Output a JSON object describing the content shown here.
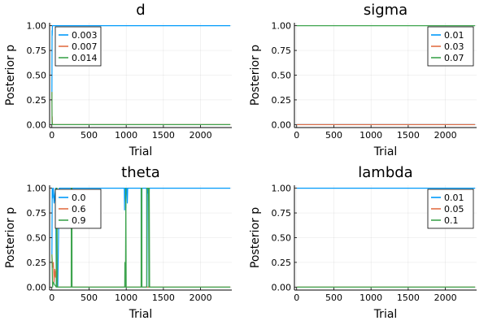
{
  "colors": {
    "s1": "#009AFA",
    "s2": "#E26F46",
    "s3": "#3EA44E"
  },
  "chart_data": [
    {
      "type": "line",
      "title": "d",
      "xlabel": "Trial",
      "ylabel": "Posterior p",
      "xlim": [
        -30,
        2420
      ],
      "ylim": [
        -0.03,
        1.03
      ],
      "xticks": [
        0,
        500,
        1000,
        1500,
        2000
      ],
      "yticks": [
        0.0,
        0.25,
        0.5,
        0.75,
        1.0
      ],
      "xtick_labels": [
        "0",
        "500",
        "1000",
        "1500",
        "2000"
      ],
      "ytick_labels": [
        "0.00",
        "0.25",
        "0.50",
        "0.75",
        "1.00"
      ],
      "grid": true,
      "legend_position": "top-left",
      "series": [
        {
          "name": "0.003",
          "color": "#009AFA",
          "x": [
            1,
            3,
            5,
            8,
            12,
            2400
          ],
          "y": [
            0.33,
            0.95,
            0.9,
            1.0,
            1.0,
            1.0
          ]
        },
        {
          "name": "0.007",
          "color": "#E26F46",
          "x": [
            1,
            3,
            5,
            8,
            12,
            2400
          ],
          "y": [
            0.33,
            0.05,
            0.08,
            0.0,
            0.0,
            0.0
          ]
        },
        {
          "name": "0.014",
          "color": "#3EA44E",
          "x": [
            1,
            3,
            5,
            8,
            12,
            2400
          ],
          "y": [
            0.33,
            0.0,
            0.02,
            0.0,
            0.0,
            0.0
          ]
        }
      ]
    },
    {
      "type": "line",
      "title": "sigma",
      "xlabel": "Trial",
      "ylabel": "Posterior p",
      "xlim": [
        -30,
        2420
      ],
      "ylim": [
        -0.03,
        1.03
      ],
      "xticks": [
        0,
        500,
        1000,
        1500,
        2000
      ],
      "yticks": [
        0.0,
        0.25,
        0.5,
        0.75,
        1.0
      ],
      "xtick_labels": [
        "0",
        "500",
        "1000",
        "1500",
        "2000"
      ],
      "ytick_labels": [
        "0.00",
        "0.25",
        "0.50",
        "0.75",
        "1.00"
      ],
      "grid": true,
      "legend_position": "top-right",
      "series": [
        {
          "name": "0.01",
          "color": "#009AFA",
          "x": [
            1,
            2400
          ],
          "y": [
            0.0,
            0.0
          ]
        },
        {
          "name": "0.03",
          "color": "#E26F46",
          "x": [
            1,
            2400
          ],
          "y": [
            0.0,
            0.0
          ]
        },
        {
          "name": "0.07",
          "color": "#3EA44E",
          "x": [
            1,
            2400
          ],
          "y": [
            1.0,
            1.0
          ]
        }
      ]
    },
    {
      "type": "line",
      "title": "theta",
      "xlabel": "Trial",
      "ylabel": "Posterior p",
      "xlim": [
        -30,
        2420
      ],
      "ylim": [
        -0.03,
        1.03
      ],
      "xticks": [
        0,
        500,
        1000,
        1500,
        2000
      ],
      "yticks": [
        0.0,
        0.25,
        0.5,
        0.75,
        1.0
      ],
      "xtick_labels": [
        "0",
        "500",
        "1000",
        "1500",
        "2000"
      ],
      "ytick_labels": [
        "0.00",
        "0.25",
        "0.50",
        "0.75",
        "1.00"
      ],
      "grid": true,
      "legend_position": "top-left",
      "series": [
        {
          "name": "0.0",
          "color": "#009AFA",
          "x": [
            1,
            5,
            10,
            20,
            30,
            50,
            60,
            80,
            100,
            260,
            262,
            270,
            975,
            978,
            980,
            985,
            990,
            995,
            1000,
            1005,
            1010,
            1015,
            1020,
            1200,
            1202,
            1210,
            1212,
            1275,
            1278,
            1285,
            1290,
            1300,
            1305,
            1310,
            1315,
            2400
          ],
          "y": [
            0.33,
            1.0,
            0.9,
            1.0,
            0.85,
            1.0,
            0.0,
            0.0,
            1.0,
            1.0,
            0.0,
            1.0,
            1.0,
            0.78,
            1.0,
            0.9,
            1.0,
            0.8,
            1.0,
            0.95,
            1.0,
            0.85,
            1.0,
            1.0,
            0.0,
            0.0,
            1.0,
            1.0,
            0.0,
            1.0,
            0.95,
            1.0,
            0.8,
            1.0,
            1.0,
            1.0
          ]
        },
        {
          "name": "0.6",
          "color": "#E26F46",
          "x": [
            1,
            10,
            20,
            30,
            40,
            50,
            60,
            70,
            80,
            90,
            100,
            2400
          ],
          "y": [
            0.33,
            0.2,
            0.25,
            0.05,
            0.18,
            0.1,
            0.19,
            0.0,
            0.0,
            0.0,
            0.0,
            0.0
          ]
        },
        {
          "name": "0.9",
          "color": "#3EA44E",
          "x": [
            1,
            10,
            20,
            40,
            60,
            62,
            70,
            72,
            100,
            260,
            262,
            270,
            272,
            980,
            982,
            990,
            995,
            1000,
            1005,
            1200,
            1202,
            1210,
            1212,
            1275,
            1278,
            1300,
            1305,
            1310,
            1315,
            2400
          ],
          "y": [
            0.33,
            0.0,
            0.05,
            0.02,
            0.0,
            1.0,
            1.0,
            0.0,
            0.0,
            0.0,
            1.0,
            1.0,
            0.0,
            0.0,
            0.25,
            0.0,
            1.0,
            0.0,
            0.0,
            0.0,
            1.0,
            1.0,
            0.0,
            0.0,
            1.0,
            1.0,
            0.0,
            1.0,
            0.0,
            0.0
          ]
        }
      ]
    },
    {
      "type": "line",
      "title": "lambda",
      "xlabel": "Trial",
      "ylabel": "Posterior p",
      "xlim": [
        -30,
        2420
      ],
      "ylim": [
        -0.03,
        1.03
      ],
      "xticks": [
        0,
        500,
        1000,
        1500,
        2000
      ],
      "yticks": [
        0.0,
        0.25,
        0.5,
        0.75,
        1.0
      ],
      "xtick_labels": [
        "0",
        "500",
        "1000",
        "1500",
        "2000"
      ],
      "ytick_labels": [
        "0.00",
        "0.25",
        "0.50",
        "0.75",
        "1.00"
      ],
      "grid": true,
      "legend_position": "top-right",
      "series": [
        {
          "name": "0.01",
          "color": "#009AFA",
          "x": [
            1,
            2400
          ],
          "y": [
            1.0,
            1.0
          ]
        },
        {
          "name": "0.05",
          "color": "#E26F46",
          "x": [
            1,
            2400
          ],
          "y": [
            0.0,
            0.0
          ]
        },
        {
          "name": "0.1",
          "color": "#3EA44E",
          "x": [
            1,
            2400
          ],
          "y": [
            0.0,
            0.0
          ]
        }
      ]
    }
  ]
}
